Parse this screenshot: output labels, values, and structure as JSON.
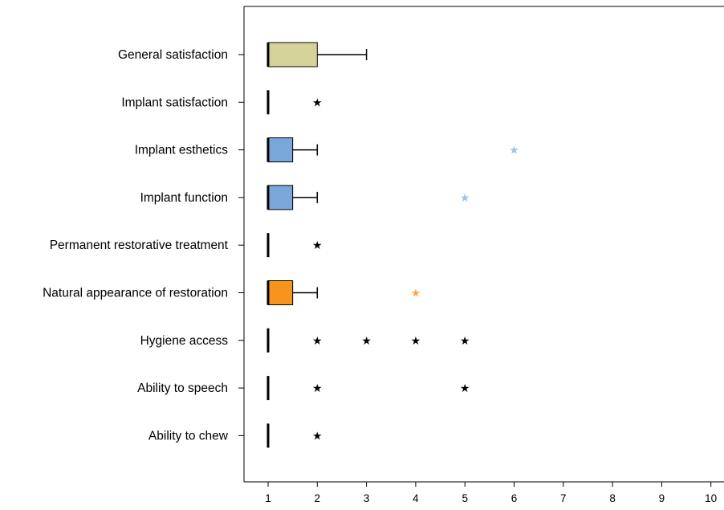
{
  "chart_data": {
    "type": "boxplot",
    "orientation": "horizontal",
    "title": "",
    "xlabel": "",
    "ylabel": "",
    "xlim": [
      0.5,
      10.3
    ],
    "xticks": [
      1,
      2,
      3,
      4,
      5,
      6,
      7,
      8,
      9,
      10
    ],
    "grid": false,
    "legend": "none",
    "categories": [
      "General satisfaction",
      "Implant satisfaction",
      "Implant esthetics",
      "Implant function",
      "Permanent restorative treatment",
      "Natural appearance of restoration",
      "Hygiene access",
      "Ability to speech",
      "Ability to chew"
    ],
    "boxes": [
      {
        "min": 1,
        "q1": 1,
        "median": 1,
        "q3": 2,
        "max": 3,
        "color": "#d6d39a",
        "outliers": [],
        "extremes": []
      },
      {
        "min": 1,
        "q1": 1,
        "median": 1,
        "q3": 1,
        "max": 1,
        "color": null,
        "outliers": [],
        "extremes": [
          2
        ]
      },
      {
        "min": 1,
        "q1": 1,
        "median": 1,
        "q3": 1.5,
        "max": 2,
        "color": "#7aa7d9",
        "outliers": [],
        "extremes": [
          6
        ]
      },
      {
        "min": 1,
        "q1": 1,
        "median": 1,
        "q3": 1.5,
        "max": 2,
        "color": "#7aa7d9",
        "outliers": [],
        "extremes": [
          5
        ]
      },
      {
        "min": 1,
        "q1": 1,
        "median": 1,
        "q3": 1,
        "max": 1,
        "color": null,
        "outliers": [],
        "extremes": [
          2
        ]
      },
      {
        "min": 1,
        "q1": 1,
        "median": 1,
        "q3": 1.5,
        "max": 2,
        "color": "#f7941d",
        "outliers": [],
        "extremes": [
          4
        ]
      },
      {
        "min": 1,
        "q1": 1,
        "median": 1,
        "q3": 1,
        "max": 1,
        "color": null,
        "outliers": [],
        "extremes": [
          2,
          3,
          4,
          5
        ]
      },
      {
        "min": 1,
        "q1": 1,
        "median": 1,
        "q3": 1,
        "max": 1,
        "color": null,
        "outliers": [],
        "extremes": [
          2,
          5
        ]
      },
      {
        "min": 1,
        "q1": 1,
        "median": 1,
        "q3": 1,
        "max": 1,
        "color": null,
        "outliers": [],
        "extremes": [
          2
        ]
      }
    ],
    "extreme_marker_colors": {
      "Implant esthetics": "#9dc3e6",
      "Implant function": "#9dc3e6",
      "Natural appearance of restoration": "#f7a84a",
      "default": "#000000"
    }
  }
}
